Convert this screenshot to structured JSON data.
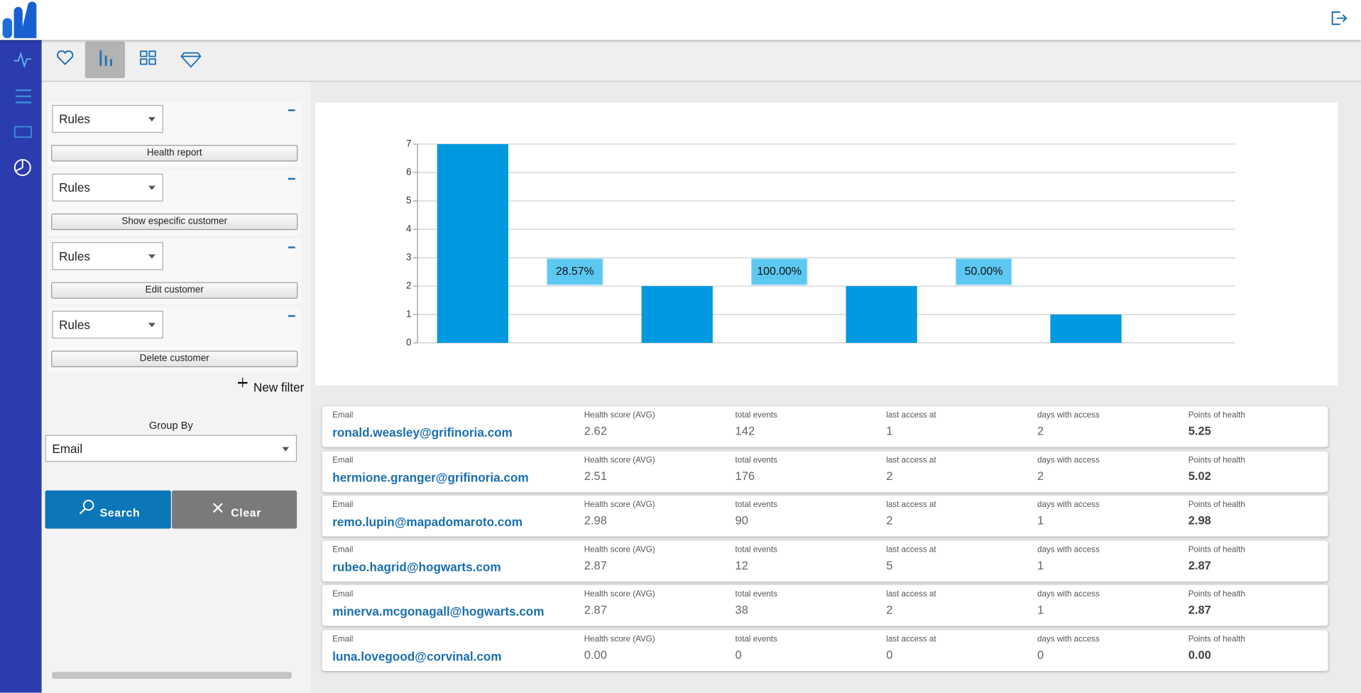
{
  "chart_data": {
    "type": "bar",
    "categories": [
      null,
      null,
      null,
      null
    ],
    "values": [
      7,
      2,
      2,
      1
    ],
    "color": "#0099e0",
    "annotations": [
      "28.57%",
      "100.00%",
      "50.00%"
    ],
    "ylim": [
      0,
      7
    ],
    "yticks": [
      0,
      1,
      2,
      3,
      4,
      5,
      6,
      7
    ],
    "grid": true
  },
  "filters": [
    {
      "select": "Rules",
      "button": "Health report"
    },
    {
      "select": "Rules",
      "button": "Show especific customer"
    },
    {
      "select": "Rules",
      "button": "Edit customer"
    },
    {
      "select": "Rules",
      "button": "Delete customer"
    }
  ],
  "new_filter": "New filter",
  "group_by": {
    "label": "Group By",
    "select": "Email"
  },
  "actions": {
    "search": "Search",
    "clear": "Clear"
  },
  "table": {
    "headers": [
      "Email",
      "Health score (AVG)",
      "total events",
      "last access at",
      "days with access",
      "Points of health"
    ],
    "rows": [
      [
        "ronald.weasley@grifinoria.com",
        "2.62",
        "142",
        "1",
        "2",
        "5.25"
      ],
      [
        "hermione.granger@grifinoria.com",
        "2.51",
        "176",
        "2",
        "2",
        "5.02"
      ],
      [
        "remo.lupin@mapadomaroto.com",
        "2.98",
        "90",
        "2",
        "1",
        "2.98"
      ],
      [
        "rubeo.hagrid@hogwarts.com",
        "2.87",
        "12",
        "5",
        "1",
        "2.87"
      ],
      [
        "minerva.mcgonagall@hogwarts.com",
        "2.87",
        "38",
        "2",
        "1",
        "2.87"
      ],
      [
        "luna.lovegood@corvinal.com",
        "0.00",
        "0",
        "0",
        "0",
        "0.00"
      ]
    ]
  }
}
